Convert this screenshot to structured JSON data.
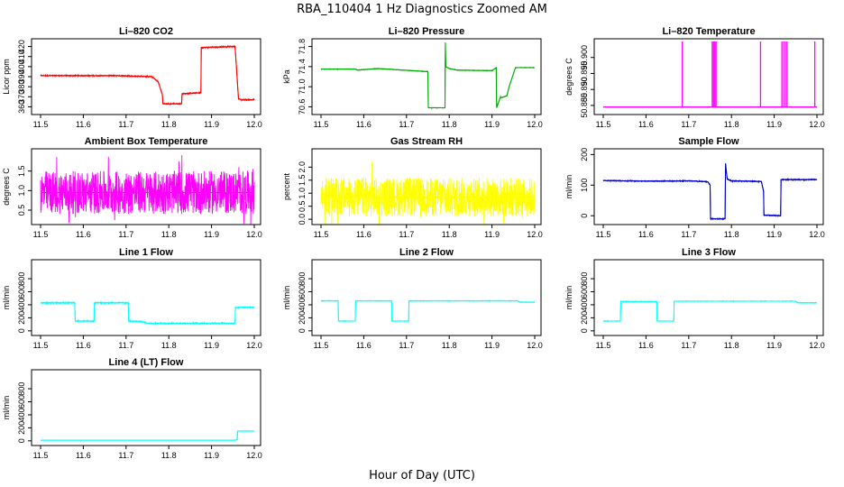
{
  "figure": {
    "title": "RBA_110404  1 Hz Diagnostics Zoomed AM",
    "xlabel": "Hour of Day (UTC)"
  },
  "chart_data": [
    {
      "type": "line",
      "title": "Li–820 CO2",
      "ylabel": "Licor ppm",
      "color": "#ff0000",
      "xlim": [
        11.5,
        12.0
      ],
      "ylim": [
        355,
        425
      ],
      "xticks": [
        "11.5",
        "11.6",
        "11.7",
        "11.8",
        "11.9",
        "12.0"
      ],
      "yticks": [
        "360",
        "370",
        "380",
        "390",
        "400",
        "410",
        "420"
      ],
      "noise": 0.6,
      "x": [
        11.5,
        11.68,
        11.76,
        11.775,
        11.785,
        11.786,
        11.83,
        11.831,
        11.875,
        11.876,
        11.955,
        11.963,
        11.97,
        12.0
      ],
      "y": [
        391,
        391,
        390,
        385,
        372,
        363,
        363,
        373,
        374,
        419,
        420,
        368,
        367,
        367
      ]
    },
    {
      "type": "line",
      "title": "Li–820 Pressure",
      "ylabel": "kPa",
      "color": "#00aa00",
      "xlim": [
        11.5,
        12.0
      ],
      "ylim": [
        70.5,
        71.9
      ],
      "xticks": [
        "11.5",
        "11.6",
        "11.7",
        "11.8",
        "11.9",
        "12.0"
      ],
      "yticks": [
        "70.6",
        "71.0",
        "71.4",
        "71.8"
      ],
      "noise": 0.005,
      "x": [
        11.5,
        11.58,
        11.585,
        11.63,
        11.635,
        11.75,
        11.751,
        11.79,
        11.791,
        11.792,
        11.8,
        11.82,
        11.9,
        11.91,
        11.911,
        11.92,
        11.921,
        11.935,
        11.94,
        11.955,
        12.0
      ],
      "y": [
        71.35,
        71.35,
        71.33,
        71.36,
        71.36,
        71.3,
        70.58,
        70.58,
        71.88,
        71.4,
        71.36,
        71.33,
        71.32,
        71.38,
        70.58,
        70.8,
        70.78,
        70.82,
        71.0,
        71.38,
        71.38
      ]
    },
    {
      "type": "line",
      "title": "Li–820 Temperature",
      "ylabel": "degrees C",
      "color": "#ff00ff",
      "xlim": [
        11.5,
        12.0
      ],
      "ylim": [
        50.883,
        50.905
      ],
      "xticks": [
        "11.5",
        "11.6",
        "11.7",
        "11.8",
        "11.9",
        "12.0"
      ],
      "yticks": [
        "50.885",
        "50.890",
        "50.895",
        "50.900"
      ],
      "spikes": [
        11.685,
        11.755,
        11.758,
        11.761,
        11.764,
        11.868,
        11.918,
        11.922,
        11.926,
        11.93,
        11.995
      ],
      "x": [
        11.5,
        12.0
      ],
      "y": [
        50.8845,
        50.8845
      ]
    },
    {
      "type": "line",
      "title": "Ambient Box Temperature",
      "ylabel": "degrees C",
      "color": "#ff00ff",
      "xlim": [
        11.5,
        12.0
      ],
      "ylim": [
        0.2,
        2.0
      ],
      "xticks": [
        "11.5",
        "11.6",
        "11.7",
        "11.8",
        "11.9",
        "12.0"
      ],
      "yticks": [
        "0.5",
        "1.0",
        "1.5"
      ],
      "noise": 0.55,
      "x": [
        11.5,
        12.0
      ],
      "y": [
        0.95,
        0.95
      ]
    },
    {
      "type": "line",
      "title": "Gas Stream RH",
      "ylabel": "percent",
      "color": "#ffff00",
      "xlim": [
        11.5,
        12.0
      ],
      "ylim": [
        -0.1,
        2.6
      ],
      "xticks": [
        "11.5",
        "11.6",
        "11.7",
        "11.8",
        "11.9",
        "12.0"
      ],
      "yticks": [
        "0.0",
        "0.5",
        "1.0",
        "1.5",
        "2.0"
      ],
      "noise": 0.75,
      "x": [
        11.5,
        12.0
      ],
      "y": [
        0.85,
        0.85
      ]
    },
    {
      "type": "line",
      "title": "Sample Flow",
      "ylabel": "ml/min",
      "color": "#0000cc",
      "xlim": [
        11.5,
        12.0
      ],
      "ylim": [
        -20,
        210
      ],
      "xticks": [
        "11.5",
        "11.6",
        "11.7",
        "11.8",
        "11.9",
        "12.0"
      ],
      "yticks": [
        "0",
        "100",
        "200"
      ],
      "noise": 1.5,
      "x": [
        11.5,
        11.6,
        11.7,
        11.745,
        11.75,
        11.751,
        11.785,
        11.786,
        11.79,
        11.8,
        11.87,
        11.875,
        11.876,
        11.915,
        11.916,
        11.96,
        12.0
      ],
      "y": [
        115,
        113,
        114,
        111,
        100,
        -10,
        -10,
        170,
        120,
        114,
        112,
        80,
        2,
        0,
        118,
        118,
        118
      ]
    },
    {
      "type": "line",
      "title": "Line 1 Flow",
      "ylabel": "ml/min",
      "color": "#00ffff",
      "xlim": [
        11.5,
        12.0
      ],
      "ylim": [
        -30,
        1050
      ],
      "xticks": [
        "11.5",
        "11.6",
        "11.7",
        "11.8",
        "11.9",
        "12.0"
      ],
      "yticks": [
        "0",
        "200",
        "400",
        "600",
        "800"
      ],
      "noise": 10,
      "x": [
        11.5,
        11.58,
        11.581,
        11.625,
        11.626,
        11.705,
        11.706,
        11.74,
        11.75,
        11.95,
        11.955,
        11.956,
        12.0
      ],
      "y": [
        430,
        430,
        150,
        150,
        430,
        430,
        150,
        140,
        115,
        115,
        120,
        360,
        360
      ]
    },
    {
      "type": "line",
      "title": "Line 2 Flow",
      "ylabel": "ml/min",
      "color": "#00ffff",
      "xlim": [
        11.5,
        12.0
      ],
      "ylim": [
        -30,
        1050
      ],
      "xticks": [
        "11.5",
        "11.6",
        "11.7",
        "11.8",
        "11.9",
        "12.0"
      ],
      "yticks": [
        "0",
        "200",
        "400",
        "600",
        "800"
      ],
      "noise": 4,
      "x": [
        11.5,
        11.54,
        11.541,
        11.58,
        11.581,
        11.665,
        11.666,
        11.705,
        11.706,
        11.96,
        11.965,
        12.0
      ],
      "y": [
        460,
        460,
        150,
        150,
        460,
        460,
        150,
        150,
        460,
        460,
        440,
        440
      ]
    },
    {
      "type": "line",
      "title": "Line 3 Flow",
      "ylabel": "ml/min",
      "color": "#00ffff",
      "xlim": [
        11.5,
        12.0
      ],
      "ylim": [
        -30,
        1050
      ],
      "xticks": [
        "11.5",
        "11.6",
        "11.7",
        "11.8",
        "11.9",
        "12.0"
      ],
      "yticks": [
        "0",
        "200",
        "400",
        "600",
        "800"
      ],
      "noise": 4,
      "x": [
        11.5,
        11.54,
        11.541,
        11.625,
        11.626,
        11.665,
        11.666,
        11.95,
        11.955,
        12.0
      ],
      "y": [
        150,
        150,
        450,
        450,
        150,
        150,
        455,
        455,
        430,
        430
      ]
    },
    {
      "type": "line",
      "title": "Line 4 (LT) Flow",
      "ylabel": "ml/min",
      "color": "#00ffff",
      "xlim": [
        11.5,
        12.0
      ],
      "ylim": [
        -30,
        1050
      ],
      "xticks": [
        "11.5",
        "11.6",
        "11.7",
        "11.8",
        "11.9",
        "12.0"
      ],
      "yticks": [
        "0",
        "200",
        "400",
        "600",
        "800"
      ],
      "noise": 0,
      "x": [
        11.5,
        11.955,
        11.96,
        11.961,
        12.0
      ],
      "y": [
        10,
        10,
        20,
        150,
        150
      ]
    }
  ]
}
